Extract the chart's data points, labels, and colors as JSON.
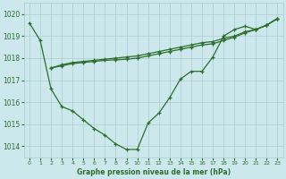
{
  "title": "Graphe pression niveau de la mer (hPa)",
  "bg_color": "#cce8ec",
  "grid_color": "#aacccc",
  "line_color": "#2d6e2d",
  "ylim": [
    1013.5,
    1020.5
  ],
  "xlim": [
    -0.5,
    23.5
  ],
  "yticks": [
    1014,
    1015,
    1016,
    1017,
    1018,
    1019,
    1020
  ],
  "xticks": [
    0,
    1,
    2,
    3,
    4,
    5,
    6,
    7,
    8,
    9,
    10,
    11,
    12,
    13,
    14,
    15,
    16,
    17,
    18,
    19,
    20,
    21,
    22,
    23
  ],
  "series1_x": [
    0,
    1,
    2,
    3,
    4,
    5,
    6,
    7,
    8,
    9,
    10,
    11,
    12,
    13,
    14,
    15,
    16,
    17,
    18,
    19,
    20,
    21,
    22,
    23
  ],
  "series1_y": [
    1019.6,
    1018.8,
    1016.6,
    1015.8,
    1015.6,
    1015.2,
    1014.8,
    1014.5,
    1014.1,
    1013.85,
    1013.85,
    1015.05,
    1015.5,
    1016.2,
    1017.05,
    1017.4,
    1017.4,
    1018.05,
    1019.0,
    1019.3,
    1019.45,
    1019.3,
    1019.5,
    1019.8
  ],
  "series2_x": [
    2,
    3,
    4,
    5,
    6,
    7,
    8,
    9,
    10,
    11,
    12,
    13,
    14,
    15,
    16,
    17,
    18,
    19,
    20,
    21,
    22,
    23
  ],
  "series2_y": [
    1017.55,
    1017.7,
    1017.8,
    1017.85,
    1017.9,
    1017.95,
    1018.0,
    1018.05,
    1018.1,
    1018.2,
    1018.3,
    1018.4,
    1018.5,
    1018.6,
    1018.7,
    1018.75,
    1018.9,
    1019.0,
    1019.2,
    1019.3,
    1019.5,
    1019.8
  ],
  "series3_x": [
    2,
    3,
    4,
    5,
    6,
    7,
    8,
    9,
    10,
    11,
    12,
    13,
    14,
    15,
    16,
    17,
    18,
    19,
    20,
    21,
    22,
    23
  ],
  "series3_y": [
    1017.55,
    1017.65,
    1017.75,
    1017.8,
    1017.85,
    1017.9,
    1017.92,
    1017.95,
    1018.0,
    1018.1,
    1018.2,
    1018.3,
    1018.4,
    1018.5,
    1018.6,
    1018.65,
    1018.8,
    1018.95,
    1019.15,
    1019.3,
    1019.5,
    1019.8
  ]
}
